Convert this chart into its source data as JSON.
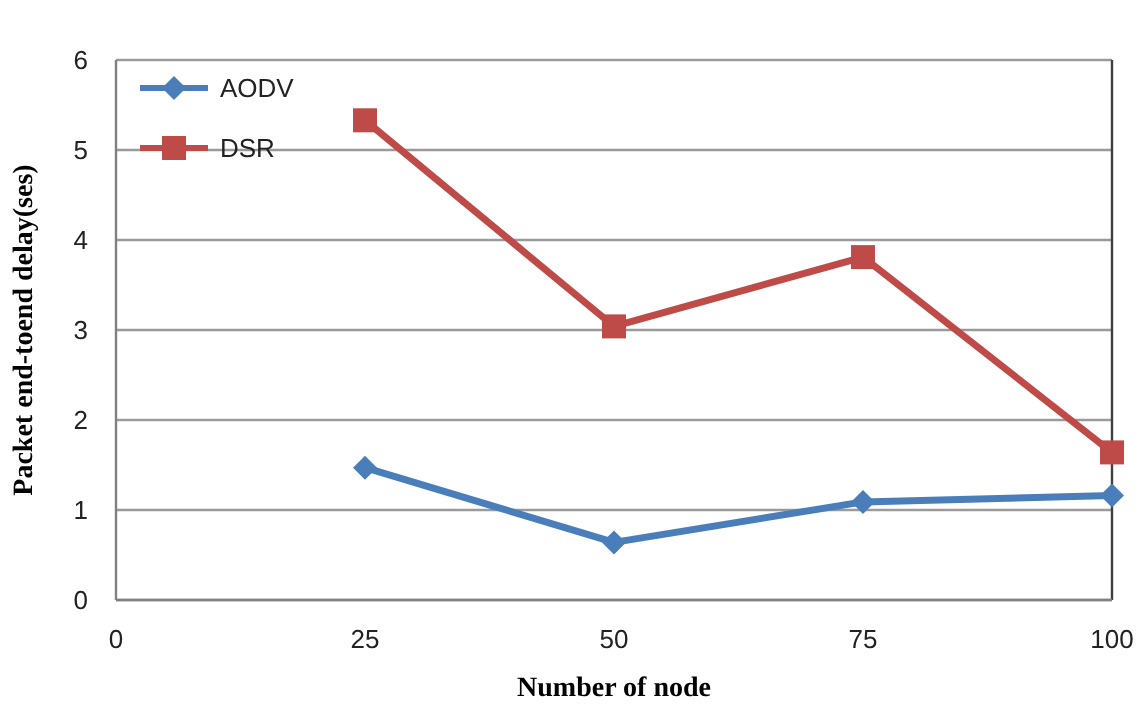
{
  "chart_data": {
    "type": "line",
    "xlabel": "Number of node",
    "ylabel": "Packet end-toend delay(ses)",
    "x": [
      25,
      50,
      75,
      100
    ],
    "series": [
      {
        "name": "AODV",
        "color": "#4a7ebb",
        "marker": "diamond",
        "values": [
          1.47,
          0.64,
          1.09,
          1.16
        ]
      },
      {
        "name": "DSR",
        "color": "#be4b48",
        "marker": "square",
        "values": [
          5.33,
          3.04,
          3.81,
          1.64
        ]
      }
    ],
    "xlim": [
      0,
      100
    ],
    "xticks": [
      0,
      25,
      50,
      75,
      100
    ],
    "ylim": [
      0,
      6
    ],
    "yticks": [
      0,
      1,
      2,
      3,
      4,
      5,
      6
    ],
    "grid": "y",
    "legend": "top left",
    "line_style": "solid"
  }
}
